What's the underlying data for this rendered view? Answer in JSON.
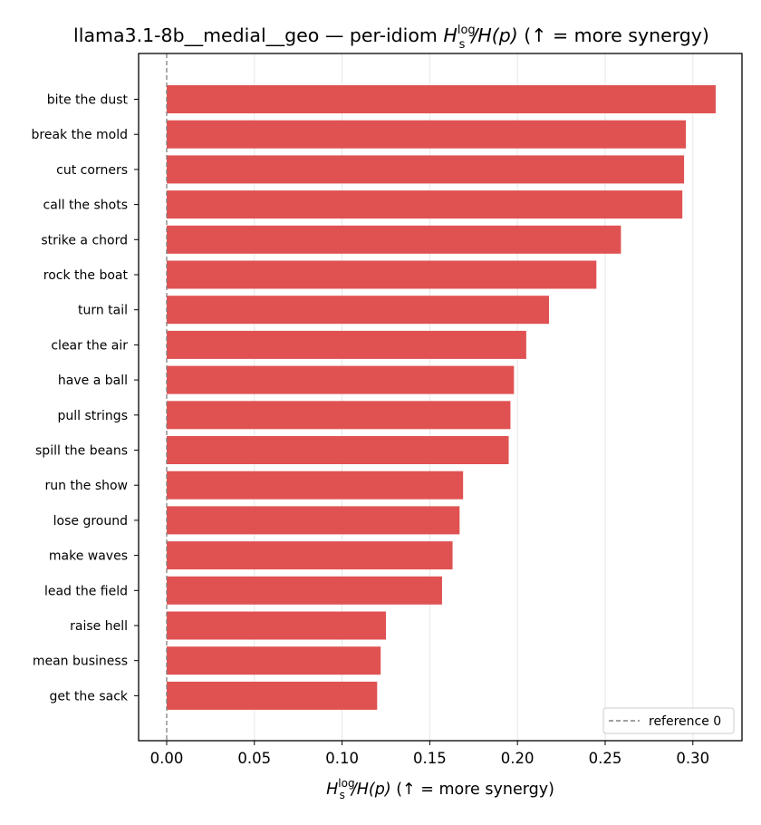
{
  "chart_data": {
    "type": "bar",
    "orientation": "horizontal",
    "title": {
      "prefix": "llama3.1-8b__medial__geo — per-idiom ",
      "math_base": "H",
      "math_sub": "s",
      "math_sup": "log",
      "math_rest": "/H(p)",
      "suffix": "  (↑ = more synergy)"
    },
    "xlabel": {
      "math_base": "H",
      "math_sub": "s",
      "math_sup": "log",
      "math_rest": "/H(p)",
      "suffix": "  (↑ = more synergy)"
    },
    "categories": [
      "bite the dust",
      "break the mold",
      "cut corners",
      "call the shots",
      "strike a chord",
      "rock the boat",
      "turn tail",
      "clear the air",
      "have a ball",
      "pull strings",
      "spill the beans",
      "run the show",
      "lose ground",
      "make waves",
      "lead the field",
      "raise hell",
      "mean business",
      "get the sack"
    ],
    "values": [
      0.313,
      0.296,
      0.295,
      0.294,
      0.259,
      0.245,
      0.218,
      0.205,
      0.198,
      0.196,
      0.195,
      0.169,
      0.167,
      0.163,
      0.157,
      0.125,
      0.122,
      0.12
    ],
    "xlim": [
      -0.016,
      0.328
    ],
    "xticks": [
      0.0,
      0.05,
      0.1,
      0.15,
      0.2,
      0.25,
      0.3
    ],
    "xtick_labels": [
      "0.00",
      "0.05",
      "0.10",
      "0.15",
      "0.20",
      "0.25",
      "0.30"
    ],
    "grid": "vertical",
    "bar_color": "#e05252",
    "reference_line": {
      "x": 0,
      "label": "reference 0",
      "color": "#808080",
      "style": "dashed"
    },
    "legend_position": "lower-right"
  }
}
